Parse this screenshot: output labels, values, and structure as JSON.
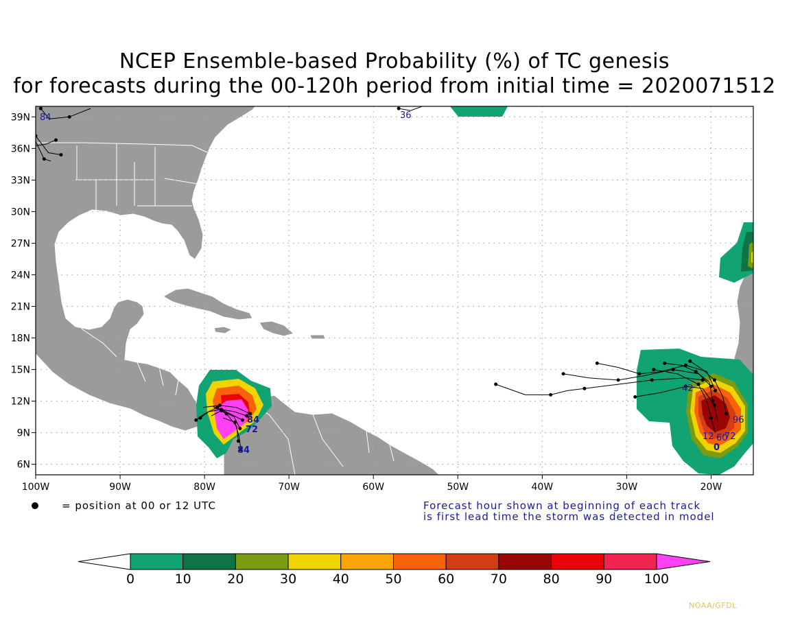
{
  "title": {
    "line1": "NCEP Ensemble-based Probability (%) of TC genesis",
    "line2": "for forecasts during the 00-120h period from initial time = 2020071512"
  },
  "map": {
    "lon_range": [
      -100,
      -15
    ],
    "lat_range": [
      5,
      40
    ],
    "lon_ticks": [
      "100W",
      "90W",
      "80W",
      "70W",
      "60W",
      "50W",
      "40W",
      "30W",
      "20W"
    ],
    "lat_ticks": [
      "39N",
      "36N",
      "33N",
      "30N",
      "27N",
      "24N",
      "21N",
      "18N",
      "15N",
      "12N",
      "9N",
      "6N"
    ],
    "grid": true,
    "land_color": "#9b9b9b",
    "border_color": "#ffffff"
  },
  "track_labels": [
    "84",
    "36",
    "42",
    "84",
    "72",
    "84",
    "12",
    "60",
    "0",
    "72",
    "96"
  ],
  "legend_note": "= position at 00 or 12 UTC",
  "forecast_note": {
    "line1": "Forecast hour shown at beginning of each track",
    "line2": "is first lead time the storm was detected in model"
  },
  "colorbar": {
    "ticks": [
      "0",
      "10",
      "20",
      "30",
      "40",
      "50",
      "60",
      "70",
      "80",
      "90",
      "100"
    ],
    "colors": [
      "#11a372",
      "#0e7347",
      "#7a9c12",
      "#f0d400",
      "#fba40a",
      "#f8620b",
      "#d43c13",
      "#990404",
      "#e80408",
      "#f0244e"
    ],
    "over_color": "#ff40f4",
    "under_color": "#ffffff"
  },
  "credit": "NOAA/GFDL"
}
